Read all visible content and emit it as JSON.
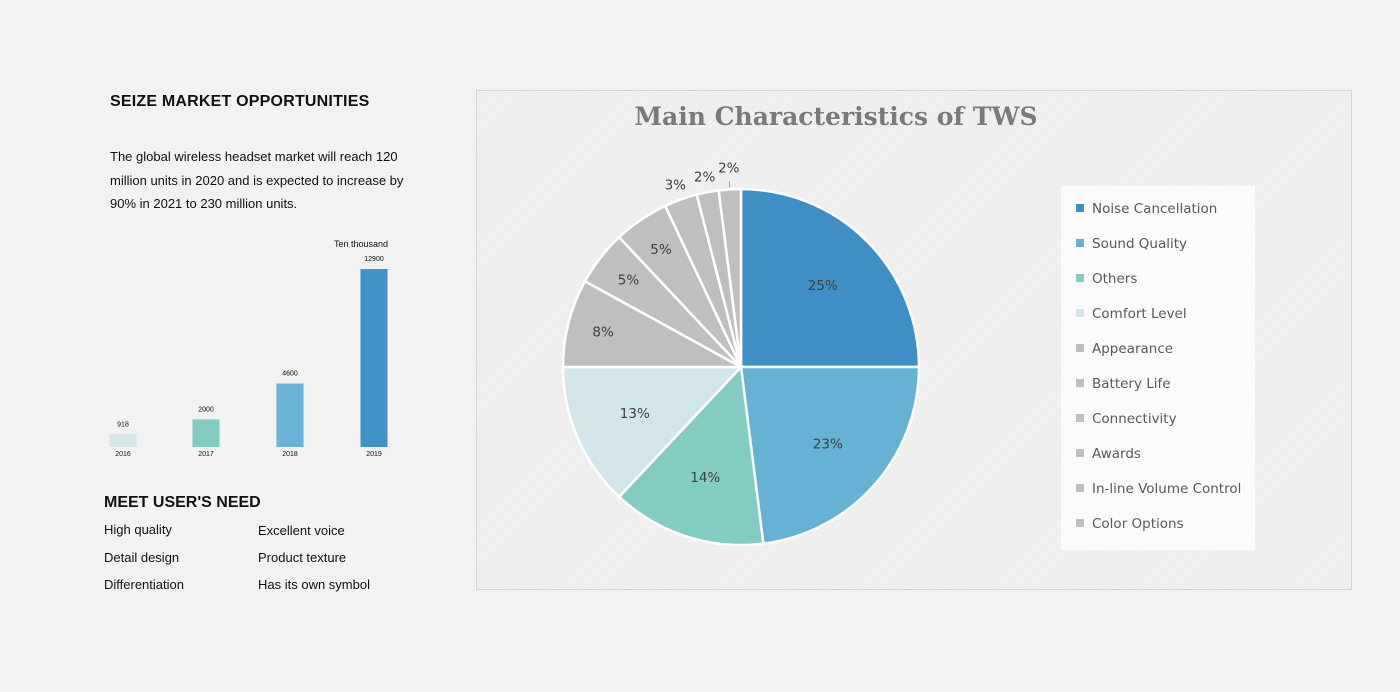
{
  "left": {
    "heading": "SEIZE MARKET OPPORTUNITIES",
    "paragraph": "The global wireless headset market will reach 120 million units in 2020 and is expected to increase by 90% in 2021 to 230 million units.",
    "needs_heading": "MEET USER'S NEED",
    "needs": [
      "High quality",
      "Excellent voice",
      "Detail design",
      "Product texture",
      "Differentiation",
      "Has its own symbol"
    ]
  },
  "chart_data": [
    {
      "type": "bar",
      "unit_label": "Ten thousand",
      "categories": [
        "2016",
        "2017",
        "2018",
        "2019"
      ],
      "values": [
        918,
        2000,
        4600,
        12900
      ],
      "colors": [
        "#d3e7e9",
        "#82ccc1",
        "#67b4d6",
        "#3f93c9"
      ]
    },
    {
      "type": "pie",
      "title": "Main Characteristics of TWS",
      "labels": [
        "Noise Cancellation",
        "Sound Quality",
        "Others",
        "Comfort Level",
        "Appearance",
        "Battery Life",
        "Connectivity",
        "Awards",
        "In-line Volume Control",
        "Color Options"
      ],
      "values": [
        25,
        23,
        14,
        13,
        8,
        5,
        5,
        3,
        2,
        2
      ],
      "data_labels": [
        "25%",
        "23%",
        "14%",
        "13%",
        "8%",
        "5%",
        "5%",
        "3%",
        "2%",
        "2%"
      ],
      "colors": [
        "#3f8fc6",
        "#65b2d5",
        "#82ccc2",
        "#d2e5e8",
        "#bfbfbf",
        "#bfbfbf",
        "#bfbfbf",
        "#bfbfbf",
        "#bfbfbf",
        "#bfbfbf"
      ],
      "legend_position": "right"
    }
  ]
}
